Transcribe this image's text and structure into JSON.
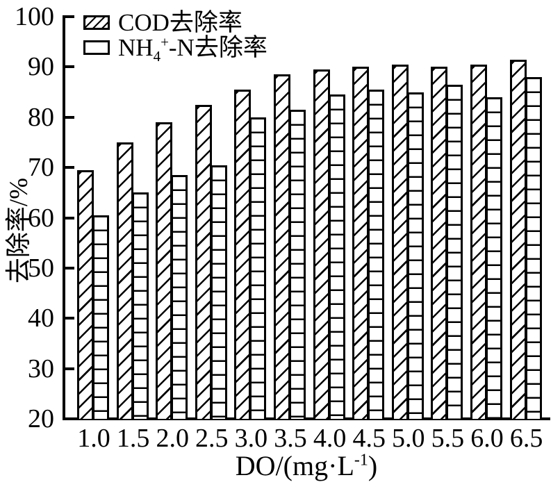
{
  "figure": {
    "background": "#ffffff",
    "ink_color": "#000000"
  },
  "legend": {
    "items": [
      {
        "label": "COD去除率",
        "swatch": "diagonal-hatch"
      },
      {
        "label_prefix": "NH",
        "label_sub": "4",
        "label_sup": "+",
        "label_suffix": "-N去除率",
        "swatch": "open-rect"
      }
    ]
  },
  "axes": {
    "y_title": "去除率/%",
    "x_title_prefix": "DO/(mg·L",
    "x_title_sup": "-1",
    "x_title_suffix": ")",
    "y_ticks": [
      "100",
      "90",
      "80",
      "70",
      "60",
      "50",
      "40",
      "30",
      "20"
    ],
    "x_ticks": [
      "1.0",
      "1.5",
      "2.0",
      "2.5",
      "3.0",
      "3.5",
      "4.0",
      "4.5",
      "5.0",
      "5.5",
      "6.0",
      "6.5"
    ]
  },
  "chart_data": {
    "type": "bar",
    "categories": [
      "1.0",
      "1.5",
      "2.0",
      "2.5",
      "3.0",
      "3.5",
      "4.0",
      "4.5",
      "5.0",
      "5.5",
      "6.0",
      "6.5"
    ],
    "series": [
      {
        "name": "COD去除率",
        "pattern": "diagonal-hatch",
        "values": [
          69.5,
          75,
          79,
          82.5,
          85.5,
          88.5,
          89.5,
          90,
          90.5,
          90,
          90.5,
          91.5
        ]
      },
      {
        "name": "NH4+-N去除率",
        "pattern": "horizontal-lines",
        "values": [
          60.5,
          65,
          68.5,
          70.5,
          80,
          81.5,
          84.5,
          85.5,
          85,
          86.5,
          84,
          88
        ]
      }
    ],
    "title": "",
    "xlabel": "DO/(mg·L⁻¹)",
    "ylabel": "去除率/%",
    "ylim": [
      20,
      100
    ],
    "ytick_step": 10,
    "grid": false,
    "legend_position": "top-left-inside"
  }
}
